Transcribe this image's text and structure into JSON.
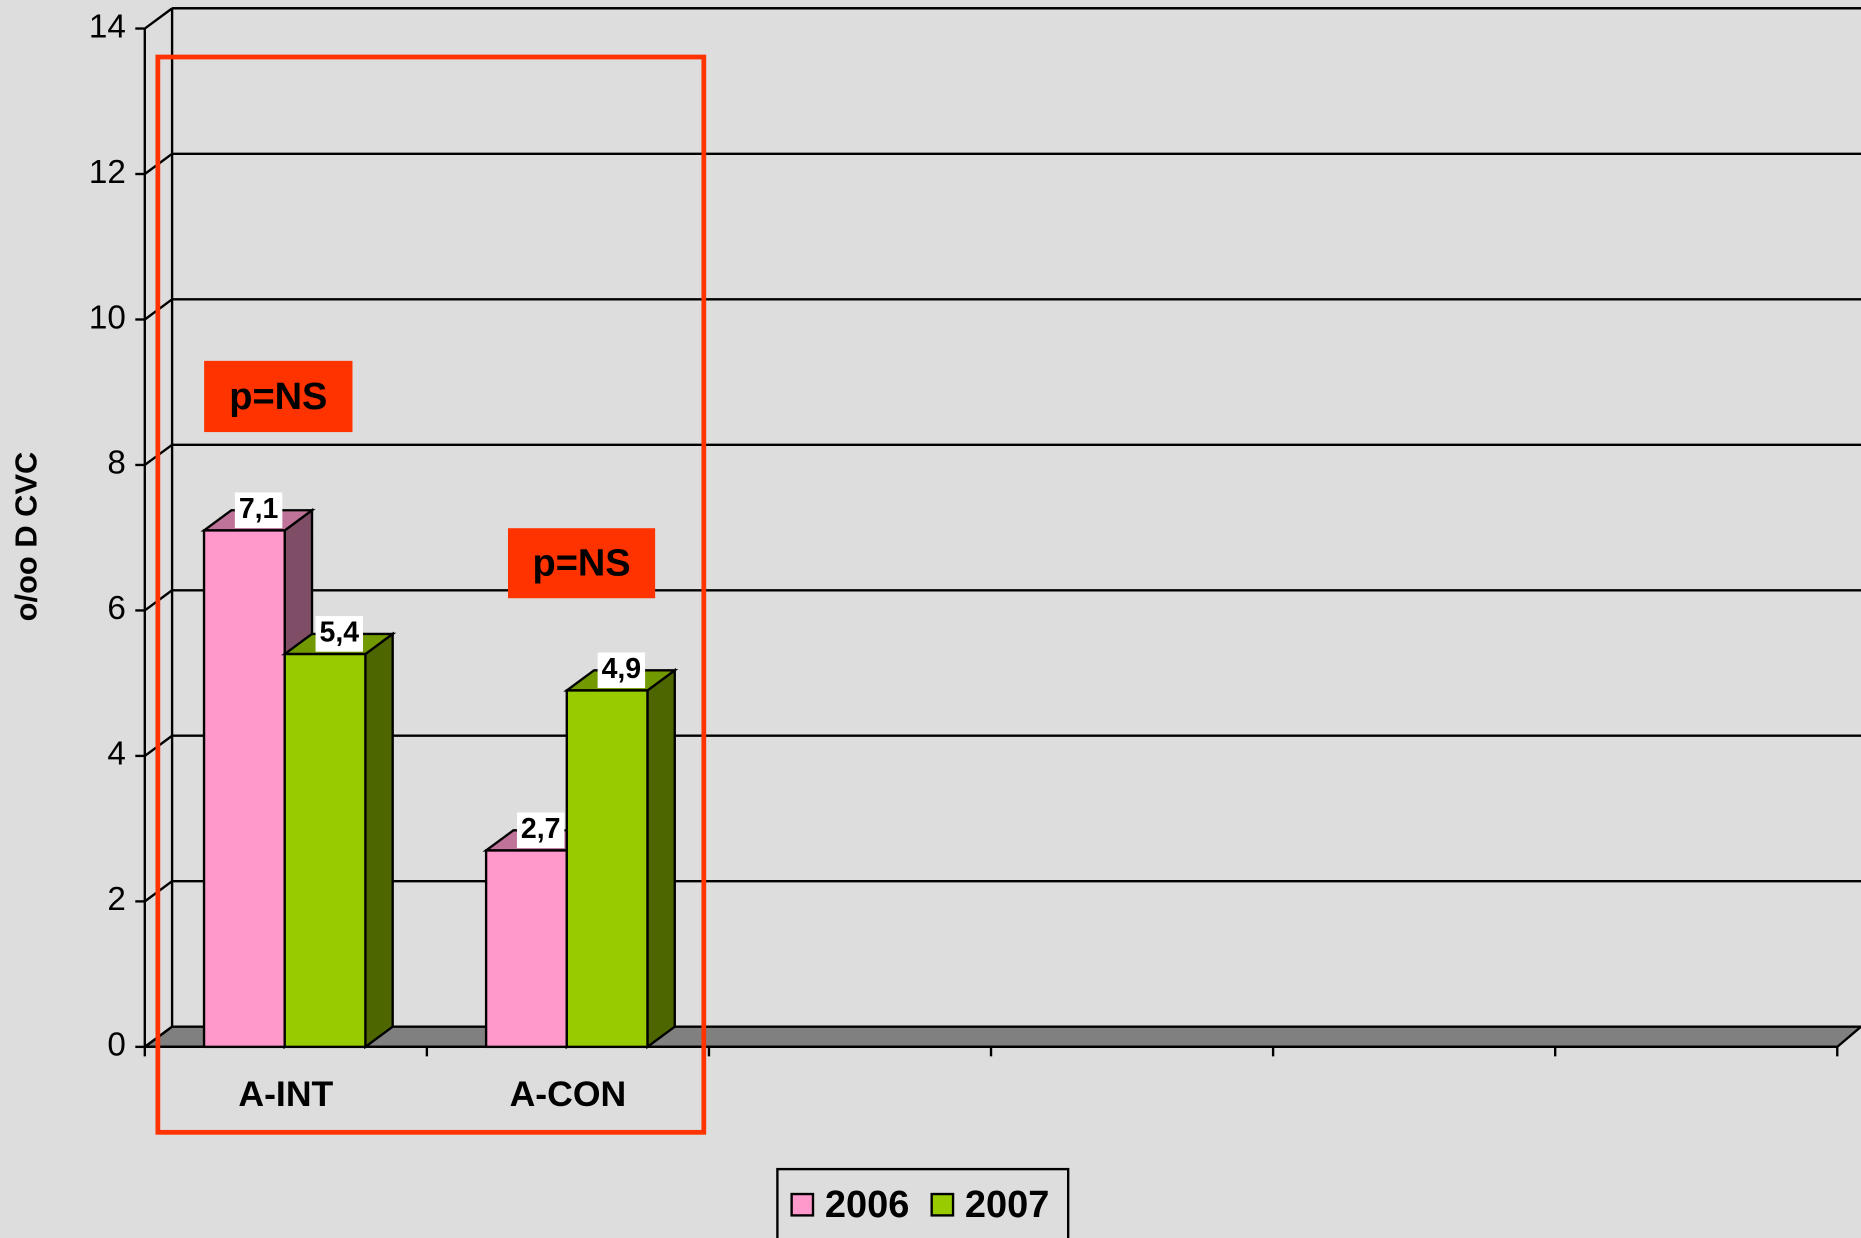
{
  "chart_data": {
    "type": "bar3d",
    "y_label": "o/oo D CVC",
    "categories": [
      "A-INT",
      "A-CON",
      null,
      null,
      null,
      null
    ],
    "series": [
      {
        "name": "2006",
        "color": "#ff99cc",
        "values": [
          7.1,
          2.7,
          null,
          null,
          null,
          null
        ],
        "value_labels": [
          "7,1",
          "2,7",
          null,
          null,
          null,
          null
        ]
      },
      {
        "name": "2007",
        "color": "#99cc00",
        "values": [
          5.4,
          4.9,
          null,
          null,
          null,
          null
        ],
        "value_labels": [
          "5,4",
          "4,9",
          null,
          null,
          null,
          null
        ]
      }
    ],
    "ylim": [
      0,
      14
    ],
    "yticks": [
      0,
      2,
      4,
      6,
      8,
      10,
      12,
      14
    ],
    "grid": true,
    "annotations": [
      "p=NS",
      "p=NS"
    ],
    "legend": "bottom"
  }
}
